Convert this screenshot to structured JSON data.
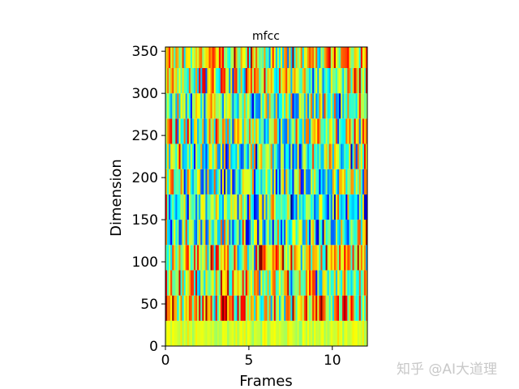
{
  "chart_data": {
    "type": "heatmap",
    "title": "mfcc",
    "xlabel": "Frames",
    "ylabel": "Dimension",
    "xlim": [
      0,
      12.1
    ],
    "ylim": [
      0,
      355
    ],
    "xticks": [
      0,
      5,
      10
    ],
    "yticks": [
      0,
      50,
      100,
      150,
      200,
      250,
      300,
      350
    ],
    "xtick_labels": [
      "0",
      "5",
      "10"
    ],
    "ytick_labels": [
      "0",
      "50",
      "100",
      "150",
      "200",
      "250",
      "300",
      "350"
    ],
    "band_height": 30,
    "n_bands": 12,
    "n_frames": 121,
    "colormap": "jet",
    "band_mean_levels": [
      0.58,
      0.66,
      0.56,
      0.63,
      0.45,
      0.42,
      0.44,
      0.45,
      0.52,
      0.42,
      0.55,
      0.62
    ],
    "grid": false,
    "legend": "none"
  },
  "watermark": "知乎 @AI大道理"
}
